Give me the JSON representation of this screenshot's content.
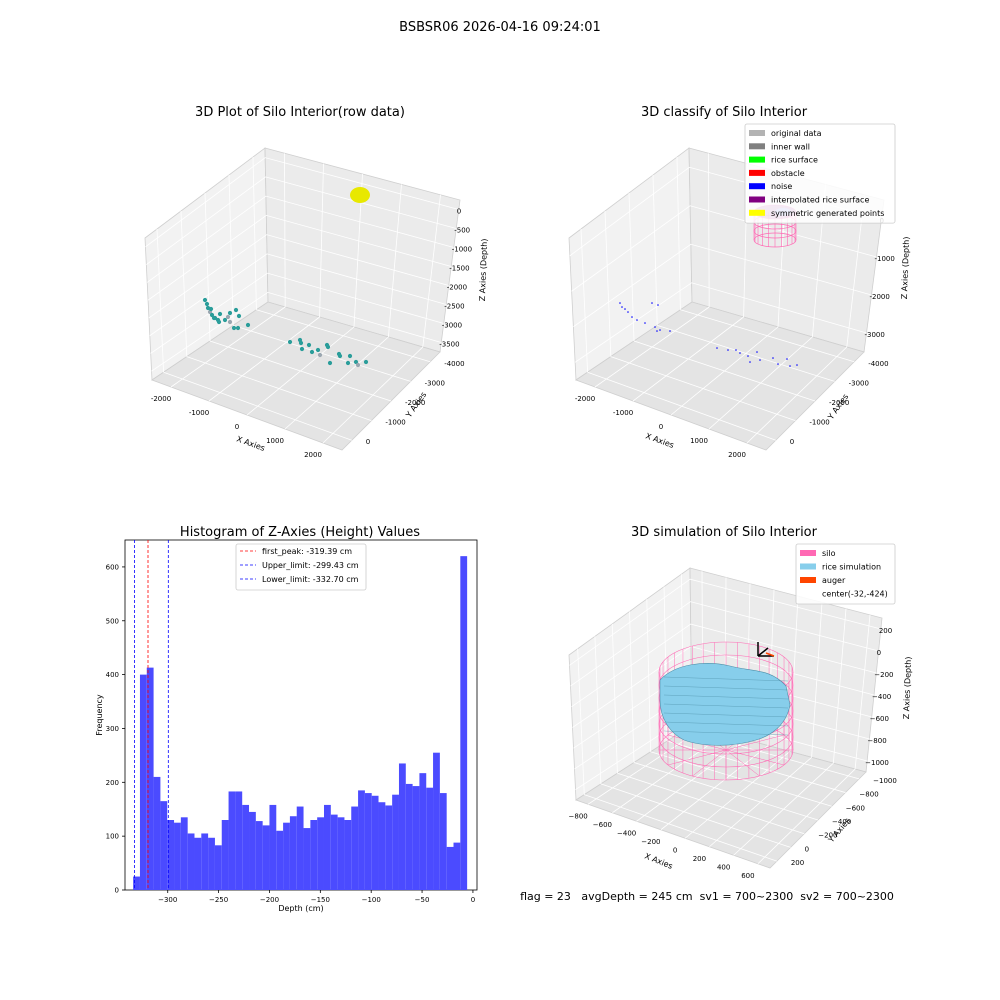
{
  "figure": {
    "title": "BSBSR06 2026-04-16 09:24:01",
    "status_line": "flag = 23   avgDepth = 245 cm  sv1 = 700~2300  sv2 = 700~2300"
  },
  "chart_data": [
    {
      "type": "scatter3d",
      "title": "3D Plot of Silo Interior(row data)",
      "xlabel": "X Axies",
      "ylabel": "Y Axies",
      "zlabel": "Z Axies (Depth)",
      "xticks": [
        "-2000",
        "-1000",
        "0",
        "1000",
        "2000"
      ],
      "yticks": [
        "0",
        "-1000",
        "-2000",
        "-3000",
        "-4000"
      ],
      "zticks": [
        "0",
        "-500",
        "-1000",
        "-1500",
        "-2000",
        "-2500",
        "-3000",
        "-3500"
      ],
      "clusters": [
        {
          "name": "yellow blob",
          "color": "#e8e800",
          "count": 1
        },
        {
          "name": "teal points",
          "color": "#2a9d9a",
          "count": 36
        }
      ]
    },
    {
      "type": "scatter3d",
      "title": "3D classify of Silo Interior",
      "xlabel": "X Axies",
      "ylabel": "Y Axies",
      "zlabel": "Z Axies (Depth)",
      "xticks": [
        "-2000",
        "-1000",
        "0",
        "1000",
        "2000"
      ],
      "yticks": [
        "0",
        "-1000",
        "-2000",
        "-3000",
        "-4000"
      ],
      "zticks": [
        "0",
        "-1000",
        "-2000",
        "-3000"
      ],
      "legend": [
        {
          "label": "original data",
          "color": "#b3b3b3"
        },
        {
          "label": "inner wall",
          "color": "#808080"
        },
        {
          "label": "rice surface",
          "color": "#00ff00"
        },
        {
          "label": "obstacle",
          "color": "#ff0000"
        },
        {
          "label": "noise",
          "color": "#0000ff"
        },
        {
          "label": "interpolated rice surface",
          "color": "#800080"
        },
        {
          "label": "symmetric generated points",
          "color": "#ffff00"
        }
      ],
      "legend_position": "top-right"
    },
    {
      "type": "bar",
      "title": "Histogram of Z-Axies (Height) Values",
      "xlabel": "Depth (cm)",
      "ylabel": "Frequency",
      "xlim": [
        -342,
        4
      ],
      "ylim": [
        0,
        650
      ],
      "xticks": [
        -300,
        -250,
        -200,
        -150,
        -100,
        -50,
        0
      ],
      "xtick_labels": [
        "−300",
        "−250",
        "−200",
        "−150",
        "−100",
        "−50",
        "0"
      ],
      "yticks": [
        0,
        100,
        200,
        300,
        400,
        500,
        600
      ],
      "bin_start": -334,
      "bin_width": 6.7,
      "values": [
        25,
        400,
        413,
        210,
        165,
        130,
        125,
        135,
        105,
        97,
        105,
        97,
        83,
        130,
        183,
        183,
        158,
        145,
        128,
        120,
        158,
        110,
        125,
        137,
        155,
        115,
        130,
        135,
        158,
        140,
        135,
        130,
        155,
        185,
        180,
        175,
        163,
        157,
        177,
        235,
        197,
        193,
        217,
        190,
        255,
        180,
        80,
        88,
        620
      ],
      "bar_color": "#4b4bff",
      "lines": [
        {
          "label": "first_peak: -319.39 cm",
          "x": -319.39,
          "color": "#ff0000"
        },
        {
          "label": "Upper_limit: -299.43 cm",
          "x": -299.43,
          "color": "#0000ff"
        },
        {
          "label": "Lower_limit: -332.70 cm",
          "x": -332.7,
          "color": "#0000ff"
        }
      ],
      "legend_position": "top-center"
    },
    {
      "type": "surface3d",
      "title": "3D simulation of Silo Interior",
      "xlabel": "X Axies",
      "ylabel": "Y Axies",
      "zlabel": "Z Axies (Depth)",
      "xticks": [
        "−800",
        "−600",
        "−400",
        "−200",
        "0",
        "200",
        "400",
        "600"
      ],
      "yticks": [
        "200",
        "0",
        "−200",
        "−400",
        "−600",
        "−800",
        "−1000"
      ],
      "zticks": [
        "200",
        "0",
        "−200",
        "−400",
        "−600",
        "−800",
        "−1000"
      ],
      "legend": [
        {
          "label": "silo",
          "color": "#ff69b4"
        },
        {
          "label": "rice simulation",
          "color": "#87ceeb"
        },
        {
          "label": "auger",
          "color": "#ff4500"
        },
        {
          "label": "center(-32,-424)",
          "color": ""
        }
      ],
      "legend_position": "top-right"
    }
  ]
}
